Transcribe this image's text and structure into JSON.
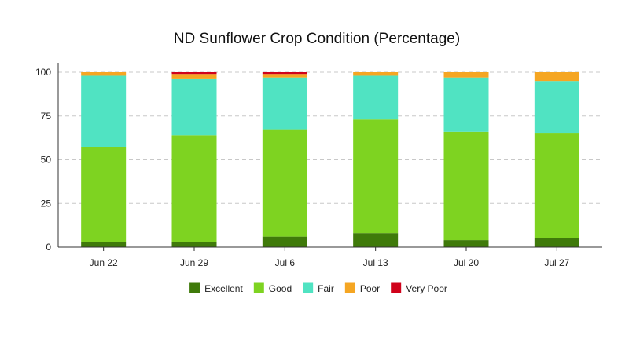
{
  "chart_data": {
    "type": "bar",
    "stacked": true,
    "title": "ND Sunflower Crop Condition (Percentage)",
    "xlabel": "",
    "ylabel": "",
    "ylim": [
      0,
      100
    ],
    "yticks": [
      0,
      25,
      50,
      75,
      100
    ],
    "grid": true,
    "legend_position": "bottom",
    "categories": [
      "Jun 22",
      "Jun 29",
      "Jul 6",
      "Jul 13",
      "Jul 20",
      "Jul 27"
    ],
    "series": [
      {
        "name": "Excellent",
        "color": "#3f7a0a",
        "values": [
          3,
          3,
          6,
          8,
          4,
          5
        ]
      },
      {
        "name": "Good",
        "color": "#7ed321",
        "values": [
          54,
          61,
          61,
          65,
          62,
          60
        ]
      },
      {
        "name": "Fair",
        "color": "#50e3c2",
        "values": [
          41,
          32,
          30,
          25,
          31,
          30
        ]
      },
      {
        "name": "Poor",
        "color": "#f5a623",
        "values": [
          2,
          3,
          2,
          2,
          3,
          5
        ]
      },
      {
        "name": "Very Poor",
        "color": "#d0021b",
        "values": [
          0,
          1,
          1,
          0,
          0,
          0
        ]
      }
    ]
  }
}
